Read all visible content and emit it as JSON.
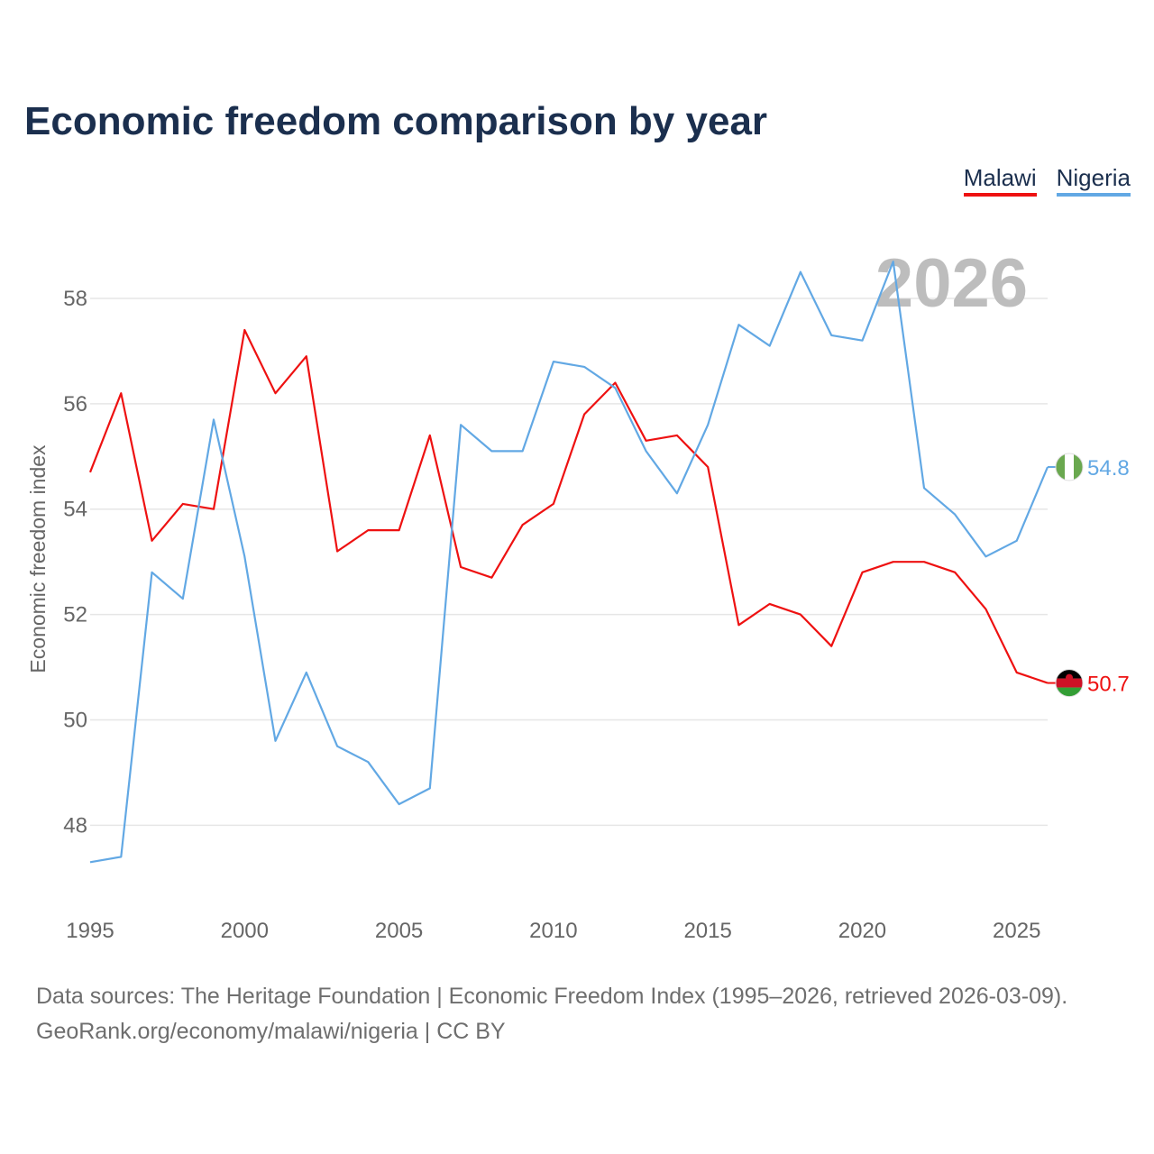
{
  "header": {
    "title": "Economic freedom comparison by year"
  },
  "legend": {
    "items": [
      {
        "label": "Malawi",
        "color": "#ee1111"
      },
      {
        "label": "Nigeria",
        "color": "#62a8e4"
      }
    ]
  },
  "footer": {
    "source_line1": "Data sources: The Heritage Foundation | Economic Freedom Index (1995–2026, retrieved 2026-03-09).",
    "source_line2": "GeoRank.org/economy/malawi/nigeria | CC BY"
  },
  "chart_data": {
    "type": "line",
    "title": "Economic freedom comparison by year",
    "xlabel": "",
    "ylabel": "Economic freedom index",
    "year_label": "2026",
    "xlim": [
      1995,
      2026
    ],
    "ylim": [
      46.5,
      59.3
    ],
    "x_ticks": [
      1995,
      2000,
      2005,
      2010,
      2015,
      2020,
      2025
    ],
    "y_ticks": [
      48,
      50,
      52,
      54,
      56,
      58
    ],
    "grid": true,
    "legend_position": "top-right",
    "x": [
      1995,
      1996,
      1997,
      1998,
      1999,
      2000,
      2001,
      2002,
      2003,
      2004,
      2005,
      2006,
      2007,
      2008,
      2009,
      2010,
      2011,
      2012,
      2013,
      2014,
      2015,
      2016,
      2017,
      2018,
      2019,
      2020,
      2021,
      2022,
      2023,
      2024,
      2025,
      2026
    ],
    "series": [
      {
        "name": "Malawi",
        "color": "#ee1111",
        "end_label": "50.7",
        "flag": "malawi-flag",
        "values": [
          54.7,
          56.2,
          53.4,
          54.1,
          54.0,
          57.4,
          56.2,
          56.9,
          53.2,
          53.6,
          53.6,
          55.4,
          52.9,
          52.7,
          53.7,
          54.1,
          55.8,
          56.4,
          55.3,
          55.4,
          54.8,
          51.8,
          52.2,
          52.0,
          51.4,
          52.8,
          53.0,
          53.0,
          52.8,
          52.1,
          50.9,
          50.7
        ]
      },
      {
        "name": "Nigeria",
        "color": "#62a8e4",
        "end_label": "54.8",
        "flag": "nigeria-flag",
        "values": [
          47.3,
          47.4,
          52.8,
          52.3,
          55.7,
          53.1,
          49.6,
          50.9,
          49.5,
          49.2,
          48.4,
          48.7,
          55.6,
          55.1,
          55.1,
          56.8,
          56.7,
          56.3,
          55.1,
          54.3,
          55.6,
          57.5,
          57.1,
          58.5,
          57.3,
          57.2,
          58.7,
          54.4,
          53.9,
          53.1,
          53.4,
          54.8
        ]
      }
    ]
  }
}
